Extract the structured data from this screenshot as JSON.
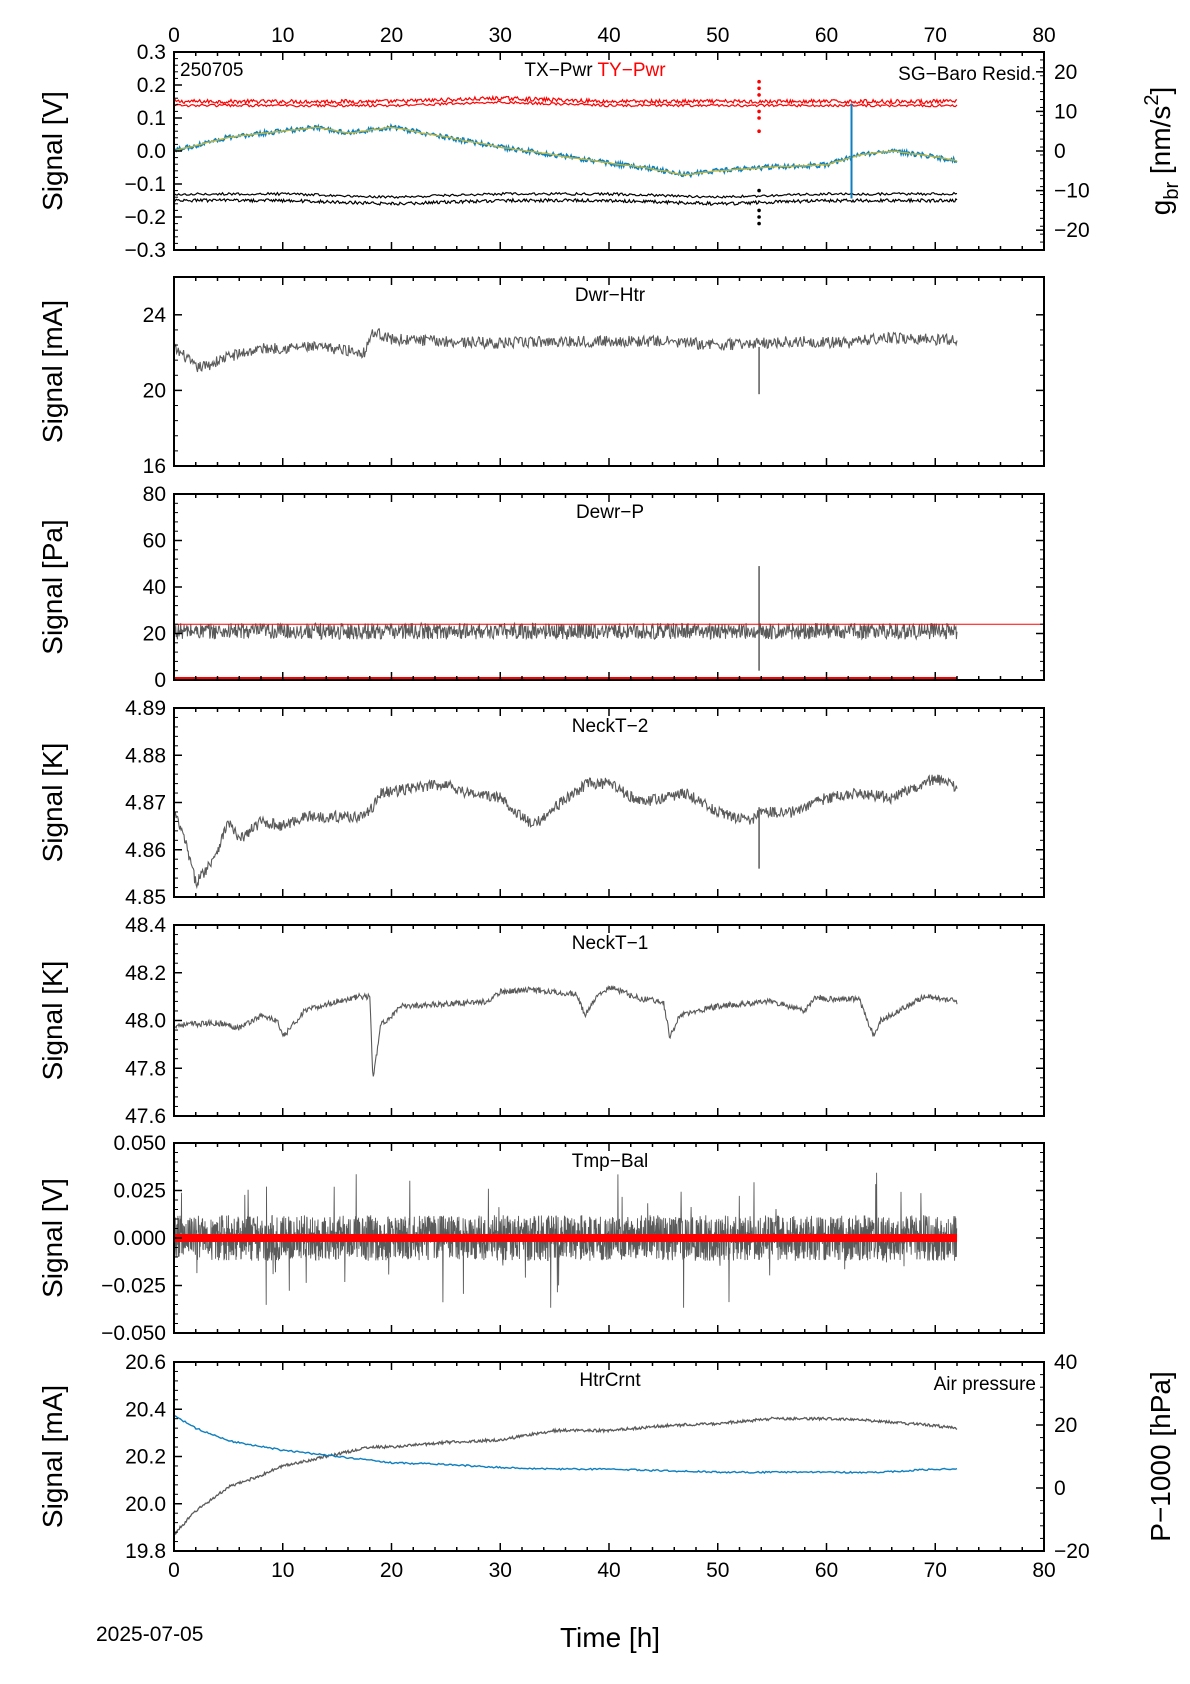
{
  "figure": {
    "date_label": "2025-07-05",
    "xlabel": "Time [h]",
    "colors": {
      "gray": "#5a5a5a",
      "red": "#ff0000",
      "blue": "#0e7fbf",
      "black": "#000000",
      "olive": "#b8b640"
    }
  },
  "chart_data": [
    {
      "type": "line",
      "id": "p1",
      "title": "TX−Pwr",
      "title2": "TY−Pwr",
      "tag": "250705",
      "right_legend": "SG−Baro Resid.",
      "ylabel": "Signal [V]",
      "y2label_main": "g",
      "y2label_sub": "br",
      "y2label_unit": " [nm/s",
      "y2label_sup": "2",
      "y2label_close": "]",
      "xlim": [
        0,
        80
      ],
      "ylim": [
        -0.3,
        0.3
      ],
      "yticks": [
        -0.3,
        -0.2,
        -0.1,
        0.0,
        0.1,
        0.2,
        0.3
      ],
      "ytick_labels": [
        "−0.3",
        "−0.2",
        "−0.1",
        "0.0",
        "0.1",
        "0.2",
        "0.3"
      ],
      "y2lim": [
        -25,
        25
      ],
      "y2ticks": [
        -20,
        -10,
        0,
        10,
        20
      ],
      "y2tick_labels": [
        "−20",
        "−10",
        "0",
        "10",
        "20"
      ],
      "xticks_top": [
        0,
        10,
        20,
        30,
        40,
        50,
        60,
        70,
        80
      ],
      "series": [
        {
          "name": "TY−Pwr",
          "x": [
            0,
            10,
            20,
            30,
            40,
            50,
            60,
            72
          ],
          "y": [
            0.15,
            0.15,
            0.15,
            0.16,
            0.15,
            0.15,
            0.15,
            0.15
          ]
        },
        {
          "name": "TX−Pwr",
          "x": [
            0,
            10,
            20,
            30,
            40,
            50,
            60,
            72
          ],
          "y": [
            -0.15,
            -0.15,
            -0.16,
            -0.15,
            -0.15,
            -0.16,
            -0.15,
            -0.15
          ]
        },
        {
          "name": "SG−Baro Resid.",
          "axis": "y2",
          "x": [
            0,
            5,
            10,
            13,
            16,
            20,
            25,
            30,
            35,
            40,
            44,
            47,
            50,
            55,
            60,
            63,
            66,
            70,
            72
          ],
          "y": [
            0,
            3.5,
            5,
            6,
            4.5,
            6,
            3.5,
            1,
            -1,
            -3,
            -4.5,
            -6,
            -5,
            -4,
            -3.5,
            -1,
            0,
            -1.5,
            -2.5
          ]
        }
      ]
    },
    {
      "type": "line",
      "id": "p2",
      "title": "Dwr−Htr",
      "ylabel": "Signal [mA]",
      "xlim": [
        0,
        80
      ],
      "ylim": [
        16,
        26
      ],
      "yticks": [
        16,
        20,
        24
      ],
      "ytick_labels": [
        "16",
        "20",
        "24"
      ],
      "series": [
        {
          "x": [
            0,
            1,
            2,
            3,
            5,
            8,
            12,
            15,
            17.5,
            18,
            18.5,
            20,
            25,
            30,
            35,
            40,
            45,
            50,
            54,
            58,
            62,
            65,
            70,
            72
          ],
          "y": [
            22.2,
            21.8,
            21.2,
            21.3,
            21.8,
            22.2,
            22.3,
            22.2,
            22.0,
            22.8,
            23.1,
            22.7,
            22.6,
            22.5,
            22.6,
            22.6,
            22.6,
            22.4,
            22.5,
            22.6,
            22.5,
            22.8,
            22.7,
            22.7
          ]
        }
      ]
    },
    {
      "type": "line",
      "id": "p3",
      "title": "Dewr−P",
      "ylabel": "Signal [Pa]",
      "xlim": [
        0,
        80
      ],
      "ylim": [
        0,
        80
      ],
      "yticks": [
        0,
        20,
        40,
        60,
        80
      ],
      "ytick_labels": [
        "0",
        "20",
        "40",
        "60",
        "80"
      ],
      "series": [
        {
          "x": [
            0,
            72
          ],
          "y": [
            21,
            21
          ]
        },
        {
          "x": [
            0,
            80
          ],
          "y": [
            24,
            24
          ]
        },
        {
          "x": [
            0,
            72
          ],
          "y": [
            0,
            0
          ]
        }
      ]
    },
    {
      "type": "line",
      "id": "p4",
      "title": "NeckT−2",
      "ylabel": "Signal [K]",
      "xlim": [
        0,
        80
      ],
      "ylim": [
        4.85,
        4.89
      ],
      "yticks": [
        4.85,
        4.86,
        4.87,
        4.88,
        4.89
      ],
      "ytick_labels": [
        "4.85",
        "4.86",
        "4.87",
        "4.88",
        "4.89"
      ],
      "series": [
        {
          "x": [
            0,
            1,
            2,
            3,
            4,
            5,
            6,
            8,
            10,
            12,
            15,
            17,
            18,
            19,
            22,
            25,
            27,
            30,
            33,
            35,
            38,
            40,
            43,
            47,
            50,
            53,
            54,
            57,
            60,
            63,
            66,
            68,
            70,
            72
          ],
          "y": [
            4.868,
            4.862,
            4.853,
            4.856,
            4.86,
            4.866,
            4.862,
            4.866,
            4.865,
            4.867,
            4.867,
            4.867,
            4.868,
            4.872,
            4.873,
            4.874,
            4.872,
            4.871,
            4.865,
            4.869,
            4.874,
            4.874,
            4.87,
            4.872,
            4.868,
            4.866,
            4.868,
            4.868,
            4.871,
            4.872,
            4.871,
            4.873,
            4.875,
            4.873
          ]
        }
      ]
    },
    {
      "type": "line",
      "id": "p5",
      "title": "NeckT−1",
      "ylabel": "Signal [K]",
      "xlim": [
        0,
        80
      ],
      "ylim": [
        47.6,
        48.4
      ],
      "yticks": [
        47.6,
        47.8,
        48.0,
        48.2,
        48.4
      ],
      "ytick_labels": [
        "47.6",
        "47.8",
        "48.0",
        "48.2",
        "48.4"
      ],
      "series": [
        {
          "x": [
            0,
            4,
            6,
            8,
            9.5,
            10,
            12,
            15,
            17,
            18,
            18.3,
            19,
            21,
            25,
            29,
            30,
            33,
            37,
            37.8,
            38.5,
            40,
            43,
            45,
            45.6,
            46.5,
            50,
            55,
            58,
            59,
            60,
            63,
            64.3,
            65,
            67,
            69,
            72
          ],
          "y": [
            47.98,
            47.99,
            47.97,
            48.02,
            48.0,
            47.93,
            48.04,
            48.08,
            48.1,
            48.1,
            47.75,
            47.98,
            48.06,
            48.07,
            48.08,
            48.12,
            48.13,
            48.11,
            48.02,
            48.08,
            48.14,
            48.09,
            48.08,
            47.93,
            48.02,
            48.06,
            48.08,
            48.04,
            48.1,
            48.09,
            48.09,
            47.94,
            48.0,
            48.05,
            48.1,
            48.08
          ]
        }
      ]
    },
    {
      "type": "line",
      "id": "p6",
      "title": "Tmp−Bal",
      "ylabel": "Signal [V]",
      "xlim": [
        0,
        80
      ],
      "ylim": [
        -0.05,
        0.05
      ],
      "yticks": [
        -0.05,
        -0.025,
        0.0,
        0.025,
        0.05
      ],
      "ytick_labels": [
        "−0.050",
        "−0.025",
        "0.000",
        "0.025",
        "0.050"
      ],
      "series": [
        {
          "x": [
            0,
            72
          ],
          "y": [
            0,
            0
          ]
        },
        {
          "x": [
            0,
            72
          ],
          "y": [
            0,
            0
          ]
        }
      ]
    },
    {
      "type": "line",
      "id": "p7",
      "title": "HtrCrnt",
      "right_legend": "Air pressure",
      "ylabel": "Signal [mA]",
      "y2label": "P−1000 [hPa]",
      "xlim": [
        0,
        80
      ],
      "ylim": [
        19.8,
        20.6
      ],
      "yticks": [
        19.8,
        20.0,
        20.2,
        20.4,
        20.6
      ],
      "ytick_labels": [
        "19.8",
        "20.0",
        "20.2",
        "20.4",
        "20.6"
      ],
      "y2lim": [
        -20,
        40
      ],
      "y2ticks": [
        -20,
        0,
        20,
        40
      ],
      "y2tick_labels": [
        "−20",
        "0",
        "20",
        "40"
      ],
      "xticks": [
        0,
        10,
        20,
        30,
        40,
        50,
        60,
        70,
        80
      ],
      "series": [
        {
          "name": "HtrCrnt",
          "x": [
            0,
            2,
            5,
            8,
            10,
            15,
            18,
            20,
            25,
            30,
            35,
            40,
            45,
            50,
            55,
            60,
            65,
            70,
            72
          ],
          "y": [
            19.87,
            19.97,
            20.07,
            20.12,
            20.16,
            20.21,
            20.24,
            20.24,
            20.26,
            20.27,
            20.31,
            20.31,
            20.33,
            20.34,
            20.36,
            20.36,
            20.35,
            20.33,
            20.32
          ]
        },
        {
          "name": "Air pressure",
          "axis": "y2",
          "x": [
            0,
            2,
            5,
            10,
            15,
            20,
            25,
            30,
            35,
            40,
            45,
            50,
            55,
            60,
            65,
            70,
            72
          ],
          "y": [
            23,
            19,
            15,
            12,
            10,
            8,
            7.5,
            6.5,
            6,
            6,
            5.5,
            5,
            5,
            5,
            5,
            6,
            6
          ]
        }
      ]
    }
  ]
}
